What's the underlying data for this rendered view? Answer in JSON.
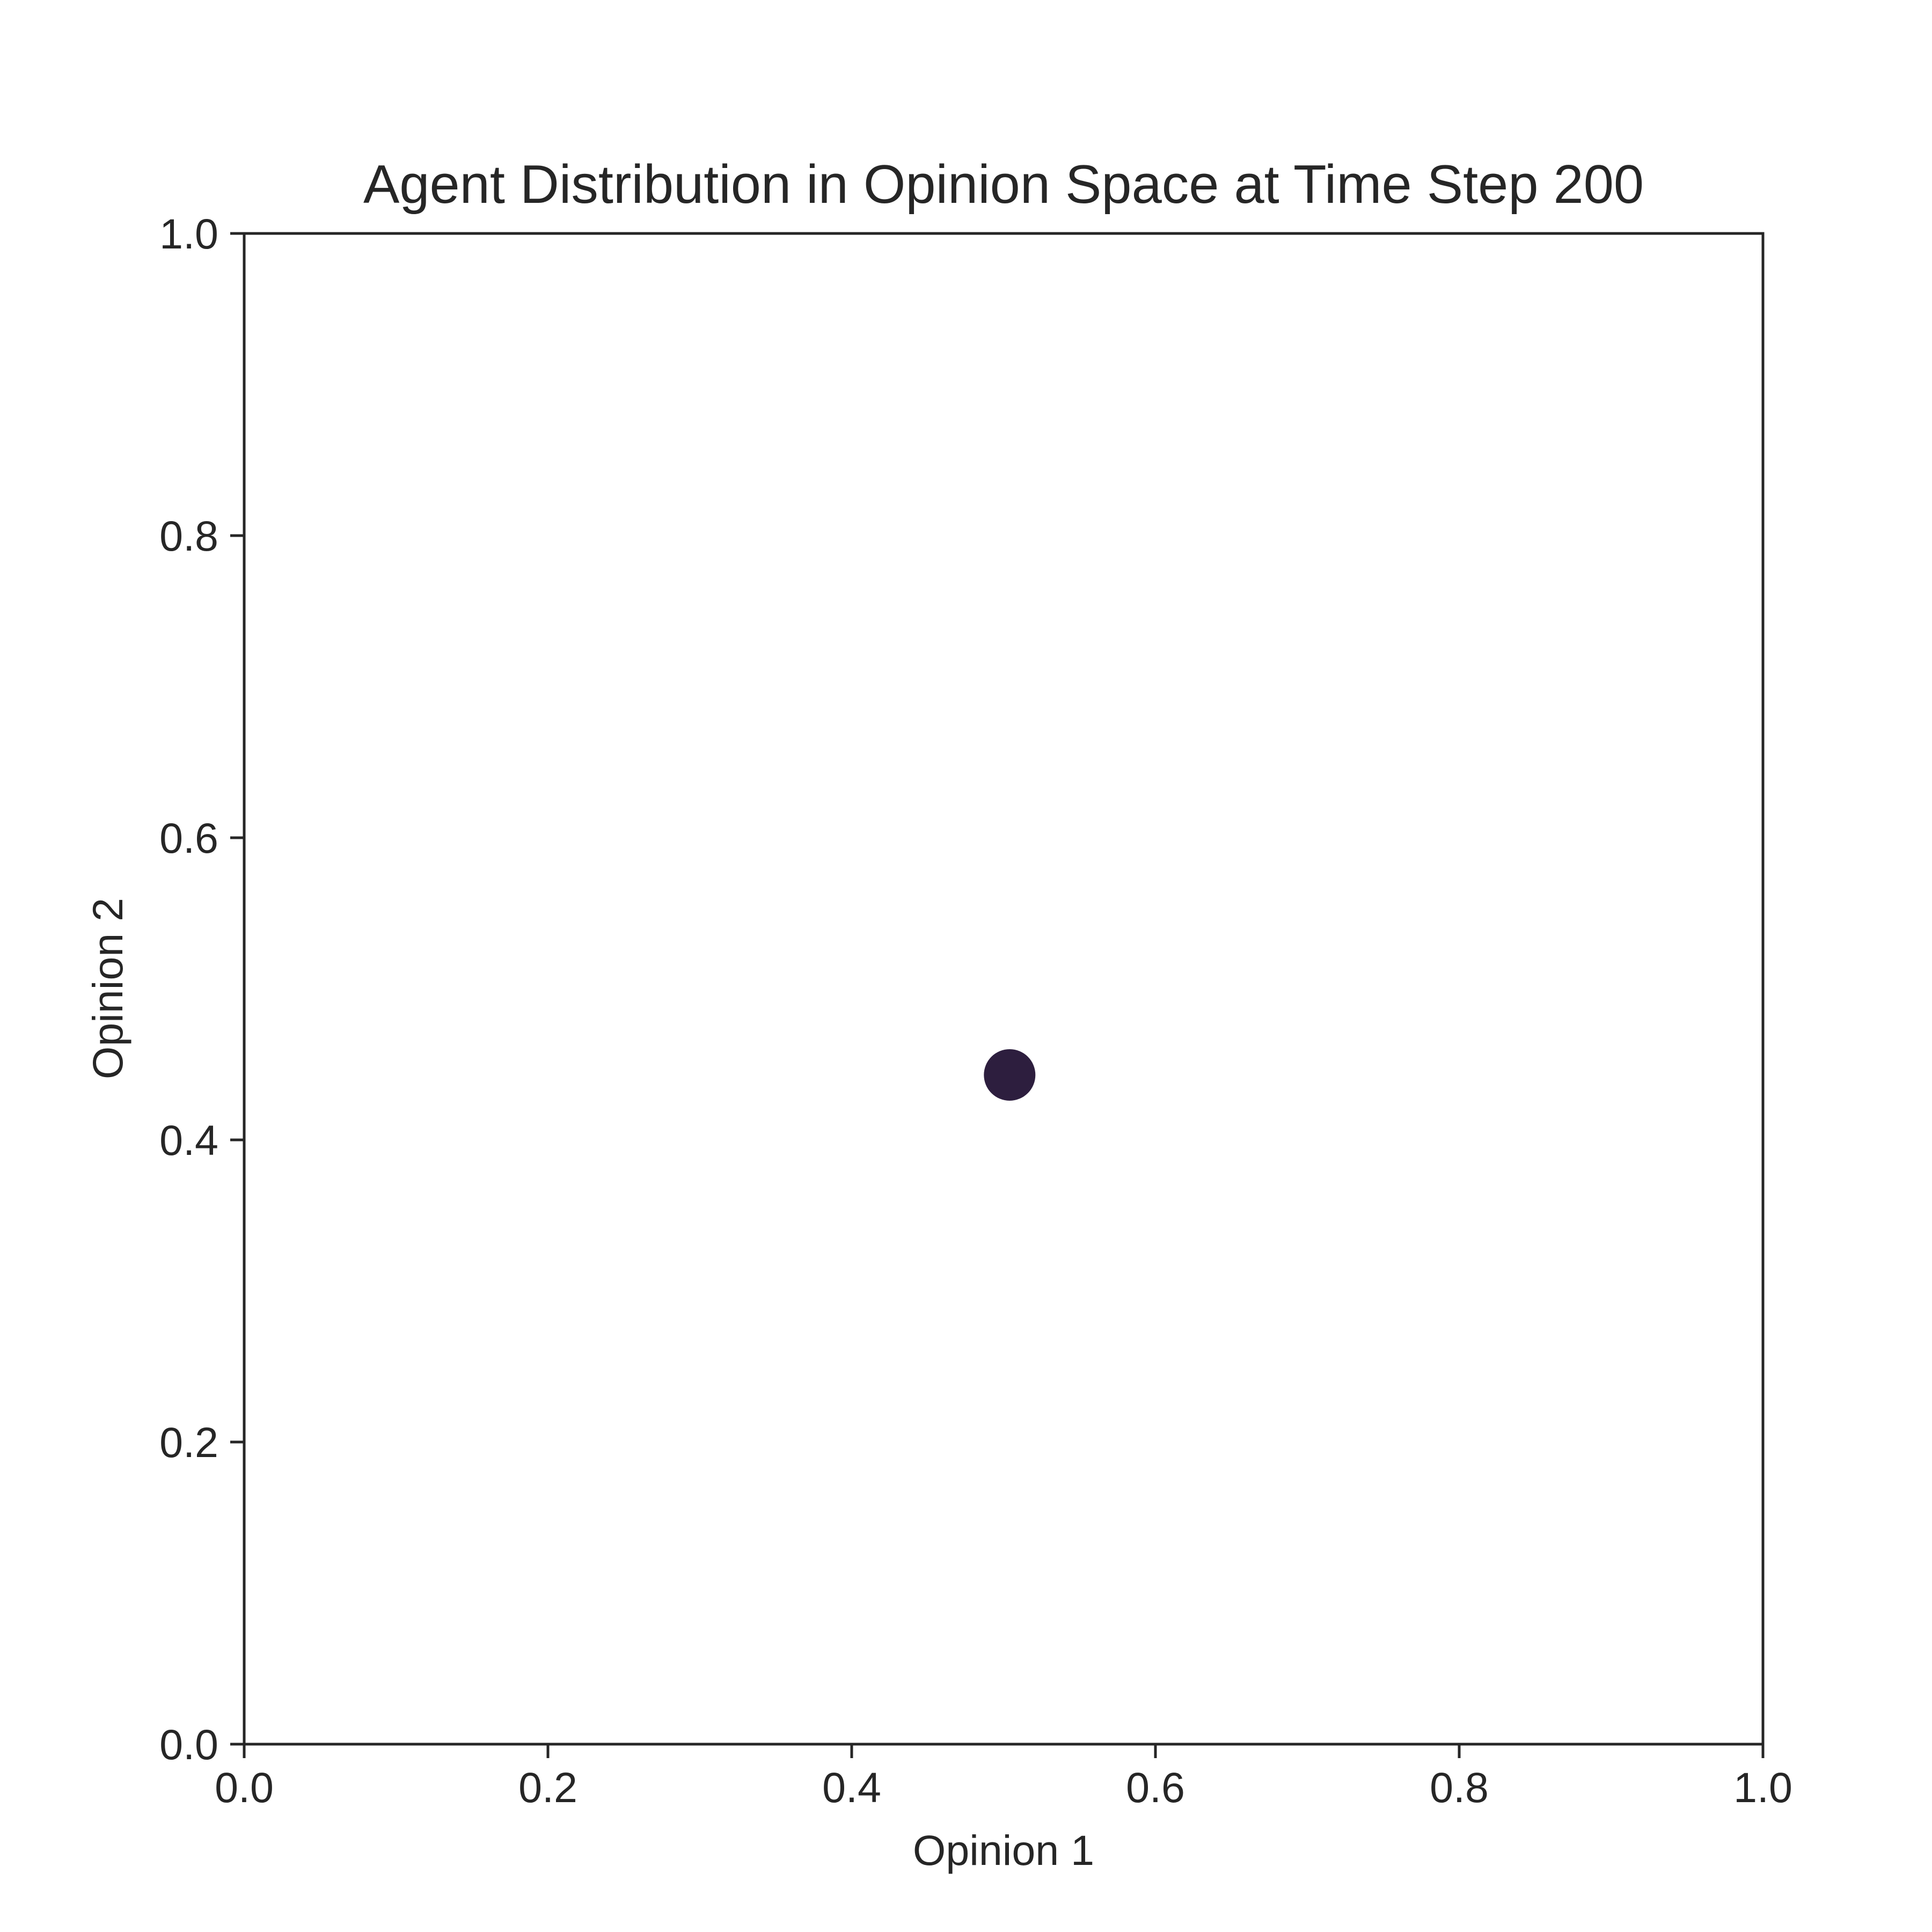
{
  "chart_data": {
    "type": "scatter",
    "title": "Agent Distribution in Opinion Space at Time Step 200",
    "xlabel": "Opinion 1",
    "ylabel": "Opinion 2",
    "xlim": [
      0,
      1
    ],
    "ylim": [
      0,
      1
    ],
    "x_ticks": [
      "0.0",
      "0.2",
      "0.4",
      "0.6",
      "0.8",
      "1.0"
    ],
    "y_ticks": [
      "0.0",
      "0.2",
      "0.4",
      "0.6",
      "0.8",
      "1.0"
    ],
    "grid": false,
    "legend": "none",
    "points": [
      {
        "x": 0.504,
        "y": 0.443,
        "color": "#2d1e3e"
      }
    ]
  }
}
